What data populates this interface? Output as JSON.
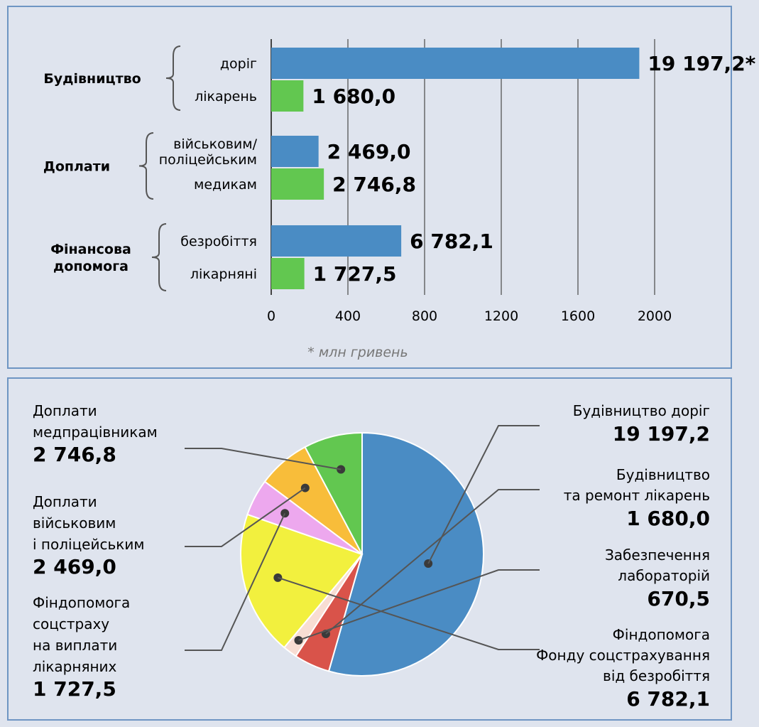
{
  "chart_data": [
    {
      "type": "bar",
      "orientation": "horizontal",
      "groups": [
        {
          "label_lines": [
            "Будівництво"
          ],
          "items": [
            {
              "label_lines": [
                "доріг"
              ],
              "value": 19197.2,
              "display": "19 197,2*",
              "color": "#4a8cc4",
              "bar_value": 1920
            },
            {
              "label_lines": [
                "лікарень"
              ],
              "value": 1680.0,
              "display": "1 680,0",
              "color": "#62c750"
            }
          ]
        },
        {
          "label_lines": [
            "Доплати"
          ],
          "items": [
            {
              "label_lines": [
                "військовим/",
                "поліцейським"
              ],
              "value": 2469.0,
              "display": "2 469,0",
              "color": "#4a8cc4"
            },
            {
              "label_lines": [
                "медикам"
              ],
              "value": 2746.8,
              "display": "2 746,8",
              "color": "#62c750"
            }
          ]
        },
        {
          "label_lines": [
            "Фінансова",
            "допомога"
          ],
          "items": [
            {
              "label_lines": [
                "безробіття"
              ],
              "value": 6782.1,
              "display": "6 782,1",
              "color": "#4a8cc4"
            },
            {
              "label_lines": [
                "лікарняні"
              ],
              "value": 1727.5,
              "display": "1 727,5",
              "color": "#62c750"
            }
          ]
        }
      ],
      "xticks": [
        "0",
        "400",
        "800",
        "1200",
        "1600",
        "2000"
      ],
      "xlim": [
        0,
        2000
      ],
      "note": "* млн гривень",
      "grid": true
    },
    {
      "type": "pie",
      "slices": [
        {
          "name_lines": [
            "Будівництво доріг"
          ],
          "value": 19197.2,
          "display": "19 197,2",
          "color": "#4a8cc4",
          "label_side": "right"
        },
        {
          "name_lines": [
            "Будівництво",
            "та ремонт лікарень"
          ],
          "value": 1680.0,
          "display": "1 680,0",
          "color": "#d9534a",
          "label_side": "right"
        },
        {
          "name_lines": [
            "Забезпечення",
            "лабораторій"
          ],
          "value": 670.5,
          "display": "670,5",
          "color": "#f8ddd3",
          "label_side": "right"
        },
        {
          "name_lines": [
            "Фіндопомога",
            "Фонду соцстрахування",
            "від безробіття"
          ],
          "value": 6782.1,
          "display": "6 782,1",
          "color": "#f2f03e",
          "label_side": "right"
        },
        {
          "name_lines": [
            "Фіндопомога",
            "соцстраху",
            "на виплати",
            "лікарняних"
          ],
          "value": 1727.5,
          "display": "1 727,5",
          "color": "#eda8ee",
          "label_side": "left"
        },
        {
          "name_lines": [
            "Доплати",
            "військовим",
            "і поліцейським"
          ],
          "value": 2469.0,
          "display": "2 469,0",
          "color": "#f8bd3a",
          "label_side": "left"
        },
        {
          "name_lines": [
            "Доплати",
            "медпрацівникам"
          ],
          "value": 2746.8,
          "display": "2 746,8",
          "color": "#62c750",
          "label_side": "left"
        }
      ]
    }
  ]
}
